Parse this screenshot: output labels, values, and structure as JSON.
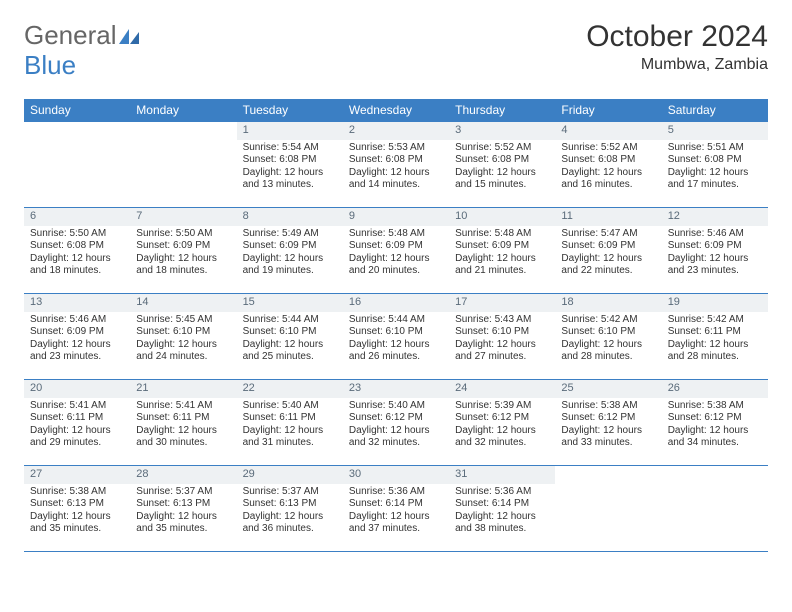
{
  "logo": {
    "text_general": "General",
    "text_blue": "Blue"
  },
  "title": "October 2024",
  "location": "Mumbwa, Zambia",
  "colors": {
    "header_bg": "#3b7fc4",
    "header_text": "#ffffff",
    "daynum_bg": "#eef1f3",
    "daynum_text": "#5a6b7a",
    "rule": "#3b7fc4",
    "body_text": "#333333",
    "page_bg": "#ffffff"
  },
  "day_names": [
    "Sunday",
    "Monday",
    "Tuesday",
    "Wednesday",
    "Thursday",
    "Friday",
    "Saturday"
  ],
  "weeks": [
    [
      null,
      null,
      {
        "n": "1",
        "sunrise": "Sunrise: 5:54 AM",
        "sunset": "Sunset: 6:08 PM",
        "day1": "Daylight: 12 hours",
        "day2": "and 13 minutes."
      },
      {
        "n": "2",
        "sunrise": "Sunrise: 5:53 AM",
        "sunset": "Sunset: 6:08 PM",
        "day1": "Daylight: 12 hours",
        "day2": "and 14 minutes."
      },
      {
        "n": "3",
        "sunrise": "Sunrise: 5:52 AM",
        "sunset": "Sunset: 6:08 PM",
        "day1": "Daylight: 12 hours",
        "day2": "and 15 minutes."
      },
      {
        "n": "4",
        "sunrise": "Sunrise: 5:52 AM",
        "sunset": "Sunset: 6:08 PM",
        "day1": "Daylight: 12 hours",
        "day2": "and 16 minutes."
      },
      {
        "n": "5",
        "sunrise": "Sunrise: 5:51 AM",
        "sunset": "Sunset: 6:08 PM",
        "day1": "Daylight: 12 hours",
        "day2": "and 17 minutes."
      }
    ],
    [
      {
        "n": "6",
        "sunrise": "Sunrise: 5:50 AM",
        "sunset": "Sunset: 6:08 PM",
        "day1": "Daylight: 12 hours",
        "day2": "and 18 minutes."
      },
      {
        "n": "7",
        "sunrise": "Sunrise: 5:50 AM",
        "sunset": "Sunset: 6:09 PM",
        "day1": "Daylight: 12 hours",
        "day2": "and 18 minutes."
      },
      {
        "n": "8",
        "sunrise": "Sunrise: 5:49 AM",
        "sunset": "Sunset: 6:09 PM",
        "day1": "Daylight: 12 hours",
        "day2": "and 19 minutes."
      },
      {
        "n": "9",
        "sunrise": "Sunrise: 5:48 AM",
        "sunset": "Sunset: 6:09 PM",
        "day1": "Daylight: 12 hours",
        "day2": "and 20 minutes."
      },
      {
        "n": "10",
        "sunrise": "Sunrise: 5:48 AM",
        "sunset": "Sunset: 6:09 PM",
        "day1": "Daylight: 12 hours",
        "day2": "and 21 minutes."
      },
      {
        "n": "11",
        "sunrise": "Sunrise: 5:47 AM",
        "sunset": "Sunset: 6:09 PM",
        "day1": "Daylight: 12 hours",
        "day2": "and 22 minutes."
      },
      {
        "n": "12",
        "sunrise": "Sunrise: 5:46 AM",
        "sunset": "Sunset: 6:09 PM",
        "day1": "Daylight: 12 hours",
        "day2": "and 23 minutes."
      }
    ],
    [
      {
        "n": "13",
        "sunrise": "Sunrise: 5:46 AM",
        "sunset": "Sunset: 6:09 PM",
        "day1": "Daylight: 12 hours",
        "day2": "and 23 minutes."
      },
      {
        "n": "14",
        "sunrise": "Sunrise: 5:45 AM",
        "sunset": "Sunset: 6:10 PM",
        "day1": "Daylight: 12 hours",
        "day2": "and 24 minutes."
      },
      {
        "n": "15",
        "sunrise": "Sunrise: 5:44 AM",
        "sunset": "Sunset: 6:10 PM",
        "day1": "Daylight: 12 hours",
        "day2": "and 25 minutes."
      },
      {
        "n": "16",
        "sunrise": "Sunrise: 5:44 AM",
        "sunset": "Sunset: 6:10 PM",
        "day1": "Daylight: 12 hours",
        "day2": "and 26 minutes."
      },
      {
        "n": "17",
        "sunrise": "Sunrise: 5:43 AM",
        "sunset": "Sunset: 6:10 PM",
        "day1": "Daylight: 12 hours",
        "day2": "and 27 minutes."
      },
      {
        "n": "18",
        "sunrise": "Sunrise: 5:42 AM",
        "sunset": "Sunset: 6:10 PM",
        "day1": "Daylight: 12 hours",
        "day2": "and 28 minutes."
      },
      {
        "n": "19",
        "sunrise": "Sunrise: 5:42 AM",
        "sunset": "Sunset: 6:11 PM",
        "day1": "Daylight: 12 hours",
        "day2": "and 28 minutes."
      }
    ],
    [
      {
        "n": "20",
        "sunrise": "Sunrise: 5:41 AM",
        "sunset": "Sunset: 6:11 PM",
        "day1": "Daylight: 12 hours",
        "day2": "and 29 minutes."
      },
      {
        "n": "21",
        "sunrise": "Sunrise: 5:41 AM",
        "sunset": "Sunset: 6:11 PM",
        "day1": "Daylight: 12 hours",
        "day2": "and 30 minutes."
      },
      {
        "n": "22",
        "sunrise": "Sunrise: 5:40 AM",
        "sunset": "Sunset: 6:11 PM",
        "day1": "Daylight: 12 hours",
        "day2": "and 31 minutes."
      },
      {
        "n": "23",
        "sunrise": "Sunrise: 5:40 AM",
        "sunset": "Sunset: 6:12 PM",
        "day1": "Daylight: 12 hours",
        "day2": "and 32 minutes."
      },
      {
        "n": "24",
        "sunrise": "Sunrise: 5:39 AM",
        "sunset": "Sunset: 6:12 PM",
        "day1": "Daylight: 12 hours",
        "day2": "and 32 minutes."
      },
      {
        "n": "25",
        "sunrise": "Sunrise: 5:38 AM",
        "sunset": "Sunset: 6:12 PM",
        "day1": "Daylight: 12 hours",
        "day2": "and 33 minutes."
      },
      {
        "n": "26",
        "sunrise": "Sunrise: 5:38 AM",
        "sunset": "Sunset: 6:12 PM",
        "day1": "Daylight: 12 hours",
        "day2": "and 34 minutes."
      }
    ],
    [
      {
        "n": "27",
        "sunrise": "Sunrise: 5:38 AM",
        "sunset": "Sunset: 6:13 PM",
        "day1": "Daylight: 12 hours",
        "day2": "and 35 minutes."
      },
      {
        "n": "28",
        "sunrise": "Sunrise: 5:37 AM",
        "sunset": "Sunset: 6:13 PM",
        "day1": "Daylight: 12 hours",
        "day2": "and 35 minutes."
      },
      {
        "n": "29",
        "sunrise": "Sunrise: 5:37 AM",
        "sunset": "Sunset: 6:13 PM",
        "day1": "Daylight: 12 hours",
        "day2": "and 36 minutes."
      },
      {
        "n": "30",
        "sunrise": "Sunrise: 5:36 AM",
        "sunset": "Sunset: 6:14 PM",
        "day1": "Daylight: 12 hours",
        "day2": "and 37 minutes."
      },
      {
        "n": "31",
        "sunrise": "Sunrise: 5:36 AM",
        "sunset": "Sunset: 6:14 PM",
        "day1": "Daylight: 12 hours",
        "day2": "and 38 minutes."
      },
      null,
      null
    ]
  ]
}
